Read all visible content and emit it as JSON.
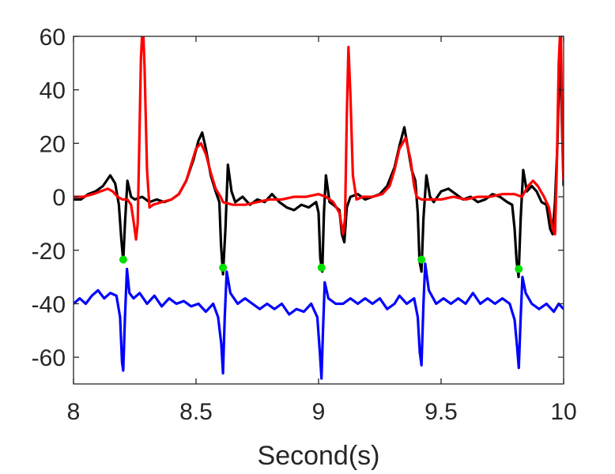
{
  "chart_data": {
    "type": "line",
    "title": "",
    "xlabel": "Second(s)",
    "ylabel": "",
    "xlim": [
      8,
      10
    ],
    "ylim": [
      -70,
      60
    ],
    "grid": false,
    "xticks": [
      8,
      8.5,
      9,
      9.5,
      10
    ],
    "xtick_labels": [
      "8",
      "8.5",
      "9",
      "9.5",
      "10"
    ],
    "yticks": [
      60,
      40,
      20,
      0,
      -20,
      -40,
      -60
    ],
    "ytick_labels": [
      "60",
      "40",
      "20",
      "0",
      "-20",
      "-40",
      "-60"
    ],
    "series": [
      {
        "color": "#000000",
        "points": [
          [
            8.0,
            -1
          ],
          [
            8.03,
            -1
          ],
          [
            8.06,
            1
          ],
          [
            8.09,
            2
          ],
          [
            8.12,
            4
          ],
          [
            8.15,
            8
          ],
          [
            8.17,
            5
          ],
          [
            8.185,
            -3
          ],
          [
            8.195,
            -16
          ],
          [
            8.203,
            -24
          ],
          [
            8.21,
            -10
          ],
          [
            8.22,
            6
          ],
          [
            8.235,
            0
          ],
          [
            8.25,
            -1
          ],
          [
            8.28,
            0
          ],
          [
            8.31,
            -2
          ],
          [
            8.34,
            -1
          ],
          [
            8.37,
            -2
          ],
          [
            8.4,
            -1
          ],
          [
            8.43,
            1
          ],
          [
            8.46,
            6
          ],
          [
            8.49,
            14
          ],
          [
            8.51,
            21
          ],
          [
            8.525,
            24
          ],
          [
            8.54,
            18
          ],
          [
            8.56,
            8
          ],
          [
            8.58,
            2
          ],
          [
            8.595,
            -2
          ],
          [
            8.602,
            -18
          ],
          [
            8.61,
            -29
          ],
          [
            8.62,
            -12
          ],
          [
            8.63,
            12
          ],
          [
            8.645,
            2
          ],
          [
            8.66,
            -2
          ],
          [
            8.69,
            0
          ],
          [
            8.72,
            -3
          ],
          [
            8.75,
            -1
          ],
          [
            8.78,
            -2
          ],
          [
            8.81,
            1
          ],
          [
            8.84,
            -2
          ],
          [
            8.87,
            -4
          ],
          [
            8.9,
            -5
          ],
          [
            8.93,
            -3
          ],
          [
            8.96,
            -4
          ],
          [
            8.99,
            -2
          ],
          [
            9.0,
            -6
          ],
          [
            9.007,
            -23
          ],
          [
            9.015,
            -28
          ],
          [
            9.022,
            -6
          ],
          [
            9.03,
            8
          ],
          [
            9.045,
            -2
          ],
          [
            9.06,
            -3
          ],
          [
            9.085,
            -5
          ],
          [
            9.095,
            -14
          ],
          [
            9.105,
            -17
          ],
          [
            9.115,
            -4
          ],
          [
            9.13,
            0
          ],
          [
            9.16,
            1
          ],
          [
            9.19,
            -1
          ],
          [
            9.22,
            0
          ],
          [
            9.25,
            1
          ],
          [
            9.28,
            4
          ],
          [
            9.31,
            11
          ],
          [
            9.33,
            19
          ],
          [
            9.35,
            26
          ],
          [
            9.365,
            18
          ],
          [
            9.38,
            10
          ],
          [
            9.395,
            6
          ],
          [
            9.405,
            -6
          ],
          [
            9.412,
            -24
          ],
          [
            9.42,
            -28
          ],
          [
            9.428,
            -8
          ],
          [
            9.44,
            8
          ],
          [
            9.455,
            0
          ],
          [
            9.47,
            -2
          ],
          [
            9.5,
            2
          ],
          [
            9.53,
            3
          ],
          [
            9.56,
            1
          ],
          [
            9.59,
            -1
          ],
          [
            9.62,
            0
          ],
          [
            9.65,
            -2
          ],
          [
            9.68,
            -1
          ],
          [
            9.71,
            1
          ],
          [
            9.74,
            0
          ],
          [
            9.77,
            -2
          ],
          [
            9.79,
            -3
          ],
          [
            9.8,
            -12
          ],
          [
            9.808,
            -24
          ],
          [
            9.816,
            -30
          ],
          [
            9.825,
            -8
          ],
          [
            9.835,
            10
          ],
          [
            9.85,
            2
          ],
          [
            9.87,
            4
          ],
          [
            9.89,
            2
          ],
          [
            9.91,
            -2
          ],
          [
            9.93,
            -3
          ],
          [
            9.945,
            -12
          ],
          [
            9.955,
            -14
          ],
          [
            9.965,
            -2
          ],
          [
            9.975,
            20
          ],
          [
            9.985,
            58
          ],
          [
            9.993,
            28
          ],
          [
            10.0,
            4
          ]
        ]
      },
      {
        "color": "#ff0000",
        "points": [
          [
            8.0,
            0
          ],
          [
            8.04,
            0
          ],
          [
            8.08,
            1
          ],
          [
            8.11,
            2
          ],
          [
            8.14,
            3
          ],
          [
            8.16,
            2
          ],
          [
            8.18,
            0
          ],
          [
            8.2,
            -1
          ],
          [
            8.22,
            -1
          ],
          [
            8.235,
            -3
          ],
          [
            8.245,
            -9
          ],
          [
            8.255,
            -16
          ],
          [
            8.262,
            -10
          ],
          [
            8.268,
            18
          ],
          [
            8.275,
            52
          ],
          [
            8.283,
            66
          ],
          [
            8.29,
            48
          ],
          [
            8.3,
            10
          ],
          [
            8.31,
            -4
          ],
          [
            8.325,
            -3
          ],
          [
            8.36,
            -2
          ],
          [
            8.4,
            -1
          ],
          [
            8.43,
            1
          ],
          [
            8.46,
            6
          ],
          [
            8.48,
            12
          ],
          [
            8.5,
            18
          ],
          [
            8.52,
            20
          ],
          [
            8.54,
            16
          ],
          [
            8.56,
            9
          ],
          [
            8.58,
            3
          ],
          [
            8.6,
            0
          ],
          [
            8.61,
            -2
          ],
          [
            8.65,
            -3
          ],
          [
            8.7,
            -3
          ],
          [
            8.75,
            -2
          ],
          [
            8.8,
            -1
          ],
          [
            8.85,
            -1
          ],
          [
            8.9,
            0
          ],
          [
            8.95,
            0
          ],
          [
            9.0,
            1
          ],
          [
            9.03,
            0
          ],
          [
            9.06,
            -2
          ],
          [
            9.085,
            -6
          ],
          [
            9.1,
            -14
          ],
          [
            9.108,
            -8
          ],
          [
            9.115,
            30
          ],
          [
            9.122,
            56
          ],
          [
            9.13,
            38
          ],
          [
            9.14,
            8
          ],
          [
            9.155,
            -1
          ],
          [
            9.18,
            0
          ],
          [
            9.22,
            0
          ],
          [
            9.26,
            1
          ],
          [
            9.29,
            4
          ],
          [
            9.31,
            10
          ],
          [
            9.33,
            18
          ],
          [
            9.355,
            22
          ],
          [
            9.375,
            14
          ],
          [
            9.39,
            4
          ],
          [
            9.4,
            0
          ],
          [
            9.42,
            -1
          ],
          [
            9.46,
            -1
          ],
          [
            9.5,
            -1
          ],
          [
            9.55,
            0
          ],
          [
            9.6,
            -1
          ],
          [
            9.65,
            0
          ],
          [
            9.7,
            0
          ],
          [
            9.75,
            1
          ],
          [
            9.8,
            1
          ],
          [
            9.83,
            0
          ],
          [
            9.855,
            4
          ],
          [
            9.875,
            6
          ],
          [
            9.895,
            4
          ],
          [
            9.92,
            0
          ],
          [
            9.94,
            -4
          ],
          [
            9.955,
            -12
          ],
          [
            9.965,
            -14
          ],
          [
            9.972,
            10
          ],
          [
            9.98,
            50
          ],
          [
            9.988,
            66
          ],
          [
            9.995,
            24
          ],
          [
            10.0,
            6
          ]
        ]
      },
      {
        "color": "#0000ff",
        "points": [
          [
            8.0,
            -40
          ],
          [
            8.025,
            -38
          ],
          [
            8.05,
            -40
          ],
          [
            8.075,
            -37
          ],
          [
            8.1,
            -35
          ],
          [
            8.125,
            -38
          ],
          [
            8.15,
            -36
          ],
          [
            8.175,
            -37
          ],
          [
            8.19,
            -45
          ],
          [
            8.198,
            -62
          ],
          [
            8.203,
            -65
          ],
          [
            8.21,
            -45
          ],
          [
            8.218,
            -27
          ],
          [
            8.228,
            -36
          ],
          [
            8.245,
            -38
          ],
          [
            8.27,
            -36
          ],
          [
            8.3,
            -40
          ],
          [
            8.33,
            -37
          ],
          [
            8.36,
            -41
          ],
          [
            8.39,
            -38
          ],
          [
            8.42,
            -40
          ],
          [
            8.45,
            -39
          ],
          [
            8.48,
            -41
          ],
          [
            8.51,
            -40
          ],
          [
            8.54,
            -43
          ],
          [
            8.57,
            -40
          ],
          [
            8.59,
            -45
          ],
          [
            8.603,
            -55
          ],
          [
            8.61,
            -66
          ],
          [
            8.617,
            -45
          ],
          [
            8.625,
            -28
          ],
          [
            8.64,
            -36
          ],
          [
            8.67,
            -40
          ],
          [
            8.7,
            -38
          ],
          [
            8.73,
            -40
          ],
          [
            8.76,
            -42
          ],
          [
            8.79,
            -40
          ],
          [
            8.82,
            -42
          ],
          [
            8.85,
            -40
          ],
          [
            8.88,
            -44
          ],
          [
            8.91,
            -42
          ],
          [
            8.94,
            -43
          ],
          [
            8.97,
            -40
          ],
          [
            8.995,
            -45
          ],
          [
            9.005,
            -58
          ],
          [
            9.012,
            -68
          ],
          [
            9.018,
            -50
          ],
          [
            9.025,
            -32
          ],
          [
            9.04,
            -38
          ],
          [
            9.07,
            -40
          ],
          [
            9.1,
            -40
          ],
          [
            9.13,
            -38
          ],
          [
            9.16,
            -40
          ],
          [
            9.19,
            -38
          ],
          [
            9.22,
            -40
          ],
          [
            9.25,
            -38
          ],
          [
            9.28,
            -42
          ],
          [
            9.31,
            -40
          ],
          [
            9.33,
            -37
          ],
          [
            9.36,
            -40
          ],
          [
            9.39,
            -38
          ],
          [
            9.405,
            -45
          ],
          [
            9.413,
            -58
          ],
          [
            9.42,
            -63
          ],
          [
            9.428,
            -40
          ],
          [
            9.435,
            -25
          ],
          [
            9.45,
            -35
          ],
          [
            9.48,
            -40
          ],
          [
            9.51,
            -38
          ],
          [
            9.54,
            -40
          ],
          [
            9.57,
            -38
          ],
          [
            9.6,
            -40
          ],
          [
            9.63,
            -36
          ],
          [
            9.66,
            -40
          ],
          [
            9.69,
            -38
          ],
          [
            9.72,
            -40
          ],
          [
            9.75,
            -38
          ],
          [
            9.78,
            -40
          ],
          [
            9.8,
            -46
          ],
          [
            9.81,
            -56
          ],
          [
            9.817,
            -64
          ],
          [
            9.825,
            -45
          ],
          [
            9.832,
            -30
          ],
          [
            9.845,
            -36
          ],
          [
            9.87,
            -40
          ],
          [
            9.9,
            -42
          ],
          [
            9.93,
            -40
          ],
          [
            9.96,
            -43
          ],
          [
            9.98,
            -40
          ],
          [
            10.0,
            -42
          ]
        ]
      },
      {
        "type": "scatter",
        "color": "#00e000",
        "points": [
          [
            8.203,
            -23.5
          ],
          [
            8.61,
            -26.5
          ],
          [
            9.012,
            -26.5
          ],
          [
            9.42,
            -23.5
          ],
          [
            9.817,
            -27
          ]
        ]
      }
    ]
  }
}
